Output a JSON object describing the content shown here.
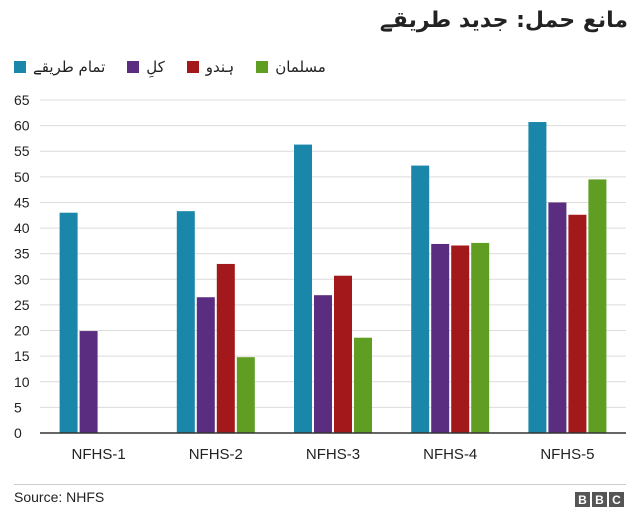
{
  "chart_data": {
    "type": "bar",
    "title": "مانع حمل: جدید طریقے",
    "categories": [
      "NFHS-1",
      "NFHS-2",
      "NFHS-3",
      "NFHS-4",
      "NFHS-5"
    ],
    "series": [
      {
        "name": "تمام طریقے",
        "color": "#1a87aa",
        "values": [
          43,
          43.3,
          56.3,
          52.2,
          60.7
        ]
      },
      {
        "name": "کلِ",
        "color": "#5a2d81",
        "values": [
          19.9,
          26.5,
          26.9,
          36.9,
          45
        ]
      },
      {
        "name": "ہندو",
        "color": "#a3191b",
        "values": [
          null,
          33,
          30.7,
          36.6,
          42.6
        ]
      },
      {
        "name": "مسلمان",
        "color": "#5f9e22",
        "values": [
          null,
          14.8,
          18.6,
          37.1,
          49.5
        ]
      }
    ],
    "ylim": [
      0,
      65
    ],
    "yticks": [
      0,
      5,
      10,
      15,
      20,
      25,
      30,
      35,
      40,
      45,
      50,
      55,
      60,
      65
    ],
    "grid": true,
    "legend": "top-left"
  },
  "footer": {
    "source": "Source: NHFS",
    "logo": [
      "B",
      "B",
      "C"
    ]
  }
}
